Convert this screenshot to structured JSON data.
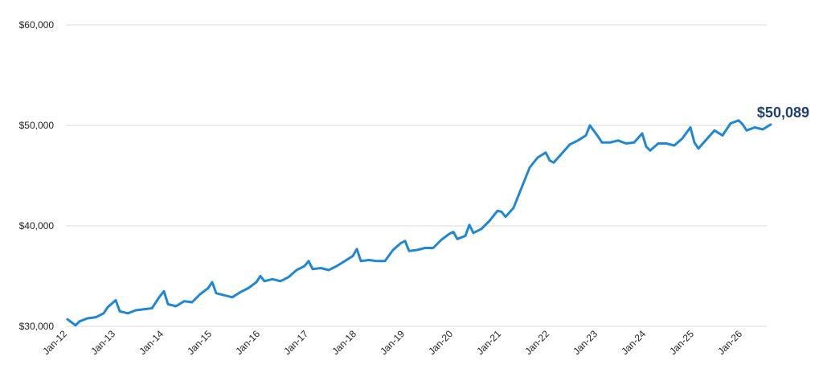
{
  "colors": {
    "line": "#1f87d6",
    "label": "#1f3f6e",
    "grid": "#d9d9d9"
  },
  "chart_data": {
    "type": "line",
    "title": "",
    "xlabel": "",
    "ylabel": "",
    "ylim": [
      30000,
      60000
    ],
    "xlim": [
      "2012-01",
      "2026-08"
    ],
    "grid": true,
    "y_ticks": [
      {
        "value": 30000,
        "label": "$30,000"
      },
      {
        "value": 40000,
        "label": "$40,000"
      },
      {
        "value": 50000,
        "label": "$50,000"
      },
      {
        "value": 60000,
        "label": "$60,000"
      }
    ],
    "x_ticks": [
      {
        "date": "2012-01",
        "label": "Jan-12"
      },
      {
        "date": "2013-01",
        "label": "Jan-13"
      },
      {
        "date": "2014-01",
        "label": "Jan-14"
      },
      {
        "date": "2015-01",
        "label": "Jan-15"
      },
      {
        "date": "2016-01",
        "label": "Jan-16"
      },
      {
        "date": "2017-01",
        "label": "Jan-17"
      },
      {
        "date": "2018-01",
        "label": "Jan-18"
      },
      {
        "date": "2019-01",
        "label": "Jan-19"
      },
      {
        "date": "2020-01",
        "label": "Jan-20"
      },
      {
        "date": "2021-01",
        "label": "Jan-21"
      },
      {
        "date": "2022-01",
        "label": "Jan-22"
      },
      {
        "date": "2023-01",
        "label": "Jan-23"
      },
      {
        "date": "2024-01",
        "label": "Jan-24"
      },
      {
        "date": "2025-01",
        "label": "Jan-25"
      },
      {
        "date": "2026-01",
        "label": "Jan-26"
      }
    ],
    "series": [
      {
        "end_label": "$50,089",
        "points": [
          [
            "2012-01",
            30700
          ],
          [
            "2012-03",
            30100
          ],
          [
            "2012-04",
            30500
          ],
          [
            "2012-06",
            30800
          ],
          [
            "2012-08",
            30900
          ],
          [
            "2012-10",
            31300
          ],
          [
            "2012-11",
            31900
          ],
          [
            "2013-01",
            32600
          ],
          [
            "2013-02",
            31500
          ],
          [
            "2013-04",
            31300
          ],
          [
            "2013-06",
            31600
          ],
          [
            "2013-08",
            31700
          ],
          [
            "2013-10",
            31800
          ],
          [
            "2013-12",
            33000
          ],
          [
            "2014-01",
            33500
          ],
          [
            "2014-02",
            32200
          ],
          [
            "2014-04",
            32000
          ],
          [
            "2014-06",
            32500
          ],
          [
            "2014-08",
            32400
          ],
          [
            "2014-10",
            33200
          ],
          [
            "2014-12",
            33800
          ],
          [
            "2015-01",
            34400
          ],
          [
            "2015-02",
            33300
          ],
          [
            "2015-04",
            33100
          ],
          [
            "2015-06",
            32900
          ],
          [
            "2015-08",
            33400
          ],
          [
            "2015-10",
            33800
          ],
          [
            "2015-12",
            34400
          ],
          [
            "2016-01",
            35000
          ],
          [
            "2016-02",
            34500
          ],
          [
            "2016-04",
            34700
          ],
          [
            "2016-06",
            34500
          ],
          [
            "2016-08",
            34900
          ],
          [
            "2016-10",
            35600
          ],
          [
            "2016-12",
            36000
          ],
          [
            "2017-01",
            36500
          ],
          [
            "2017-02",
            35700
          ],
          [
            "2017-04",
            35800
          ],
          [
            "2017-06",
            35600
          ],
          [
            "2017-08",
            36000
          ],
          [
            "2017-10",
            36500
          ],
          [
            "2017-12",
            37000
          ],
          [
            "2018-01",
            37700
          ],
          [
            "2018-02",
            36500
          ],
          [
            "2018-04",
            36600
          ],
          [
            "2018-06",
            36500
          ],
          [
            "2018-08",
            36500
          ],
          [
            "2018-10",
            37600
          ],
          [
            "2018-12",
            38300
          ],
          [
            "2019-01",
            38500
          ],
          [
            "2019-02",
            37500
          ],
          [
            "2019-04",
            37600
          ],
          [
            "2019-06",
            37800
          ],
          [
            "2019-08",
            37800
          ],
          [
            "2019-10",
            38600
          ],
          [
            "2019-12",
            39200
          ],
          [
            "2020-01",
            39400
          ],
          [
            "2020-02",
            38700
          ],
          [
            "2020-04",
            39000
          ],
          [
            "2020-05",
            40100
          ],
          [
            "2020-06",
            39300
          ],
          [
            "2020-08",
            39700
          ],
          [
            "2020-10",
            40500
          ],
          [
            "2020-12",
            41500
          ],
          [
            "2021-01",
            41400
          ],
          [
            "2021-02",
            40900
          ],
          [
            "2021-04",
            41800
          ],
          [
            "2021-06",
            43800
          ],
          [
            "2021-08",
            45800
          ],
          [
            "2021-10",
            46800
          ],
          [
            "2021-12",
            47300
          ],
          [
            "2022-01",
            46500
          ],
          [
            "2022-02",
            46300
          ],
          [
            "2022-04",
            47200
          ],
          [
            "2022-06",
            48100
          ],
          [
            "2022-08",
            48500
          ],
          [
            "2022-10",
            49000
          ],
          [
            "2022-11",
            50000
          ],
          [
            "2023-01",
            48900
          ],
          [
            "2023-02",
            48300
          ],
          [
            "2023-04",
            48300
          ],
          [
            "2023-06",
            48500
          ],
          [
            "2023-08",
            48200
          ],
          [
            "2023-10",
            48300
          ],
          [
            "2023-12",
            49200
          ],
          [
            "2024-01",
            47900
          ],
          [
            "2024-02",
            47500
          ],
          [
            "2024-04",
            48200
          ],
          [
            "2024-06",
            48200
          ],
          [
            "2024-08",
            48000
          ],
          [
            "2024-10",
            48700
          ],
          [
            "2024-12",
            49800
          ],
          [
            "2025-01",
            48300
          ],
          [
            "2025-02",
            47700
          ],
          [
            "2025-04",
            48600
          ],
          [
            "2025-06",
            49500
          ],
          [
            "2025-08",
            49000
          ],
          [
            "2025-10",
            50200
          ],
          [
            "2025-12",
            50500
          ],
          [
            "2026-01",
            50100
          ],
          [
            "2026-02",
            49500
          ],
          [
            "2026-04",
            49800
          ],
          [
            "2026-06",
            49600
          ],
          [
            "2026-08",
            50089
          ]
        ]
      }
    ]
  }
}
